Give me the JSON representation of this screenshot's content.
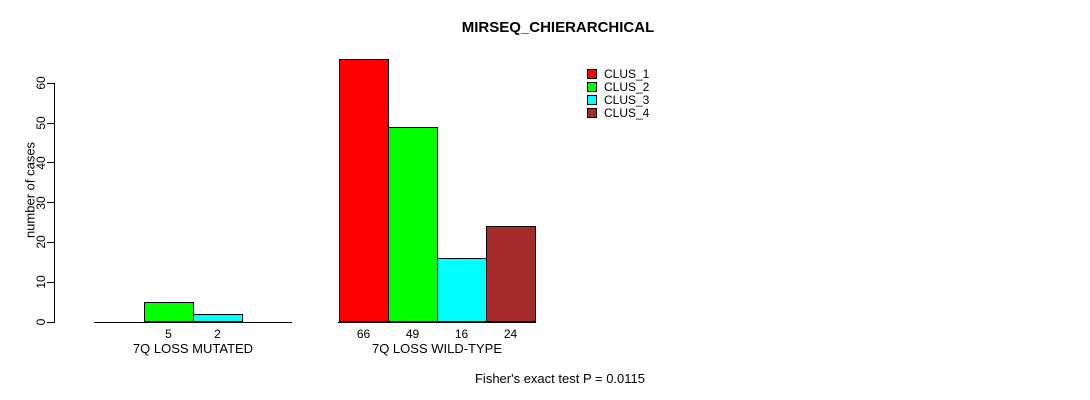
{
  "title": "MIRSEQ_CHIERARCHICAL",
  "footer": "Fisher's exact test P = 0.0115",
  "y_axis": {
    "label": "number of cases",
    "ticks": [
      0,
      10,
      20,
      30,
      40,
      50,
      60
    ]
  },
  "legend": [
    {
      "label": "CLUS_1",
      "color": "#FF0000"
    },
    {
      "label": "CLUS_2",
      "color": "#00FF00"
    },
    {
      "label": "CLUS_3",
      "color": "#00FFFF"
    },
    {
      "label": "CLUS_4",
      "color": "#A52A2A"
    }
  ],
  "colors": {
    "axis": "#000000",
    "background": "#FFFFFF"
  },
  "chart_data": {
    "type": "bar",
    "title": "MIRSEQ_CHIERARCHICAL",
    "xlabel": "",
    "ylabel": "number of cases",
    "ylim": [
      0,
      66
    ],
    "yticks": [
      0,
      10,
      20,
      30,
      40,
      50,
      60
    ],
    "grid": false,
    "legend_position": "top-right",
    "categories": [
      "7Q LOSS MUTATED",
      "7Q LOSS WILD-TYPE"
    ],
    "series": [
      {
        "name": "CLUS_1",
        "color": "#FF0000",
        "values": [
          0,
          66
        ]
      },
      {
        "name": "CLUS_2",
        "color": "#00FF00",
        "values": [
          5,
          49
        ]
      },
      {
        "name": "CLUS_3",
        "color": "#00FFFF",
        "values": [
          2,
          16
        ]
      },
      {
        "name": "CLUS_4",
        "color": "#A52A2A",
        "values": [
          0,
          24
        ]
      }
    ],
    "bar_value_labels": [
      [
        "",
        "5",
        "2",
        ""
      ],
      [
        "66",
        "49",
        "16",
        "24"
      ]
    ],
    "annotation": "Fisher's exact test P = 0.0115"
  }
}
